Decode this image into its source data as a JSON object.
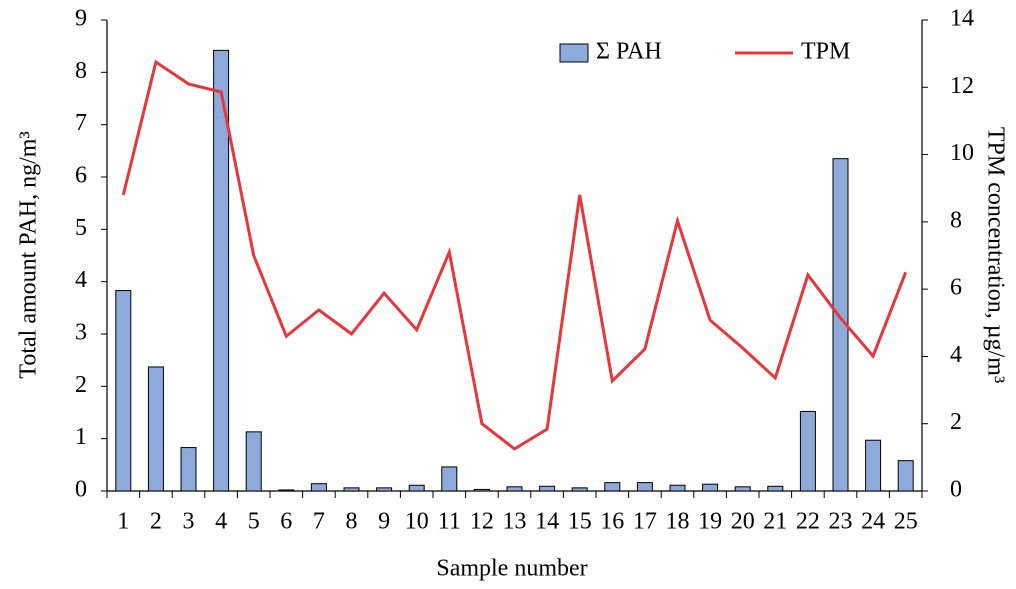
{
  "chart_data": {
    "type": "bar-line",
    "x_label": "Sample number",
    "y_label": "Total amount PAH, ng/m³",
    "y2_label": "TPM concentration, µg/m³",
    "categories": [
      "1",
      "2",
      "3",
      "4",
      "5",
      "6",
      "7",
      "8",
      "9",
      "10",
      "11",
      "12",
      "13",
      "14",
      "15",
      "16",
      "17",
      "18",
      "19",
      "20",
      "21",
      "22",
      "23",
      "24",
      "25"
    ],
    "series": [
      {
        "name": "Σ PAH",
        "type": "bar",
        "color": "#8eaadb",
        "values": [
          3.83,
          2.37,
          0.83,
          8.42,
          1.13,
          0.02,
          0.14,
          0.06,
          0.06,
          0.11,
          0.46,
          0.03,
          0.08,
          0.09,
          0.06,
          0.16,
          0.16,
          0.11,
          0.13,
          0.08,
          0.09,
          1.52,
          6.35,
          0.97,
          0.58
        ]
      },
      {
        "name": "TPM",
        "type": "line",
        "axis": "y2",
        "color": "#e8363a",
        "values": [
          8.8,
          12.75,
          12.1,
          11.86,
          7.0,
          4.6,
          5.38,
          4.67,
          5.88,
          4.79,
          7.1,
          2.0,
          1.25,
          1.84,
          8.8,
          3.27,
          4.22,
          8.03,
          5.08,
          4.25,
          3.36,
          6.42,
          5.14,
          4.01,
          6.5
        ]
      }
    ],
    "ylim": [
      0,
      9
    ],
    "yticks": [
      0,
      1,
      2,
      3,
      4,
      5,
      6,
      7,
      8,
      9
    ],
    "y2lim": [
      0,
      14
    ],
    "y2ticks": [
      0,
      2,
      4,
      6,
      8,
      10,
      12,
      14
    ],
    "legend": "upper right"
  }
}
